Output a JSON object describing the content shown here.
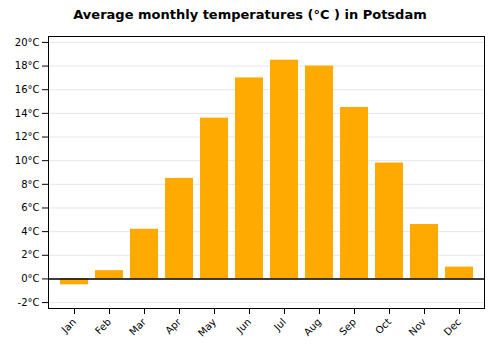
{
  "chart_data": {
    "type": "bar",
    "title": "Average monthly temperatures (°C ) in Potsdam",
    "categories": [
      "Jan",
      "Feb",
      "Mar",
      "Apr",
      "May",
      "Jun",
      "Jul",
      "Aug",
      "Sep",
      "Oct",
      "Nov",
      "Dec"
    ],
    "values": [
      -0.5,
      0.7,
      4.2,
      8.5,
      13.6,
      17.0,
      18.5,
      18.0,
      14.5,
      9.8,
      4.6,
      1.0
    ],
    "color": "#FFAA00",
    "ylim": [
      -2.5,
      20.5
    ],
    "yticks": [
      {
        "value": -2,
        "label": "-2°C"
      },
      {
        "value": 0,
        "label": "0°C"
      },
      {
        "value": 2,
        "label": "2°C"
      },
      {
        "value": 4,
        "label": "4°C"
      },
      {
        "value": 6,
        "label": "6°C"
      },
      {
        "value": 8,
        "label": "8°C"
      },
      {
        "value": 10,
        "label": "10°C"
      },
      {
        "value": 12,
        "label": "12°C"
      },
      {
        "value": 14,
        "label": "14°C"
      },
      {
        "value": 16,
        "label": "16°C"
      },
      {
        "value": 18,
        "label": "18°C"
      },
      {
        "value": 20,
        "label": "20°C"
      }
    ],
    "grid": true
  }
}
